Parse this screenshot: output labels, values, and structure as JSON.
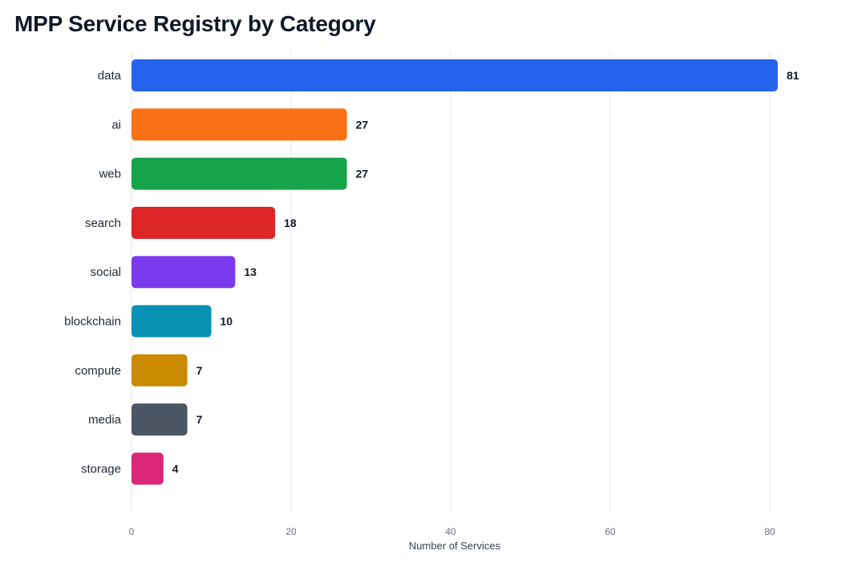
{
  "chart_data": {
    "type": "bar",
    "orientation": "horizontal",
    "title": "MPP Service Registry by Category",
    "xlabel": "Number of Services",
    "ylabel": "",
    "xlim": [
      0,
      85
    ],
    "x_ticks": [
      0,
      20,
      40,
      60,
      80
    ],
    "grid": "vertical",
    "legend": "none",
    "categories": [
      "data",
      "ai",
      "web",
      "search",
      "social",
      "blockchain",
      "compute",
      "media",
      "storage"
    ],
    "values": [
      81,
      27,
      27,
      18,
      13,
      10,
      7,
      7,
      4
    ],
    "colors": [
      "#2563eb",
      "#f97316",
      "#16a34a",
      "#dc2626",
      "#7c3aed",
      "#0891b2",
      "#ca8a04",
      "#4b5563",
      "#db2777"
    ]
  }
}
